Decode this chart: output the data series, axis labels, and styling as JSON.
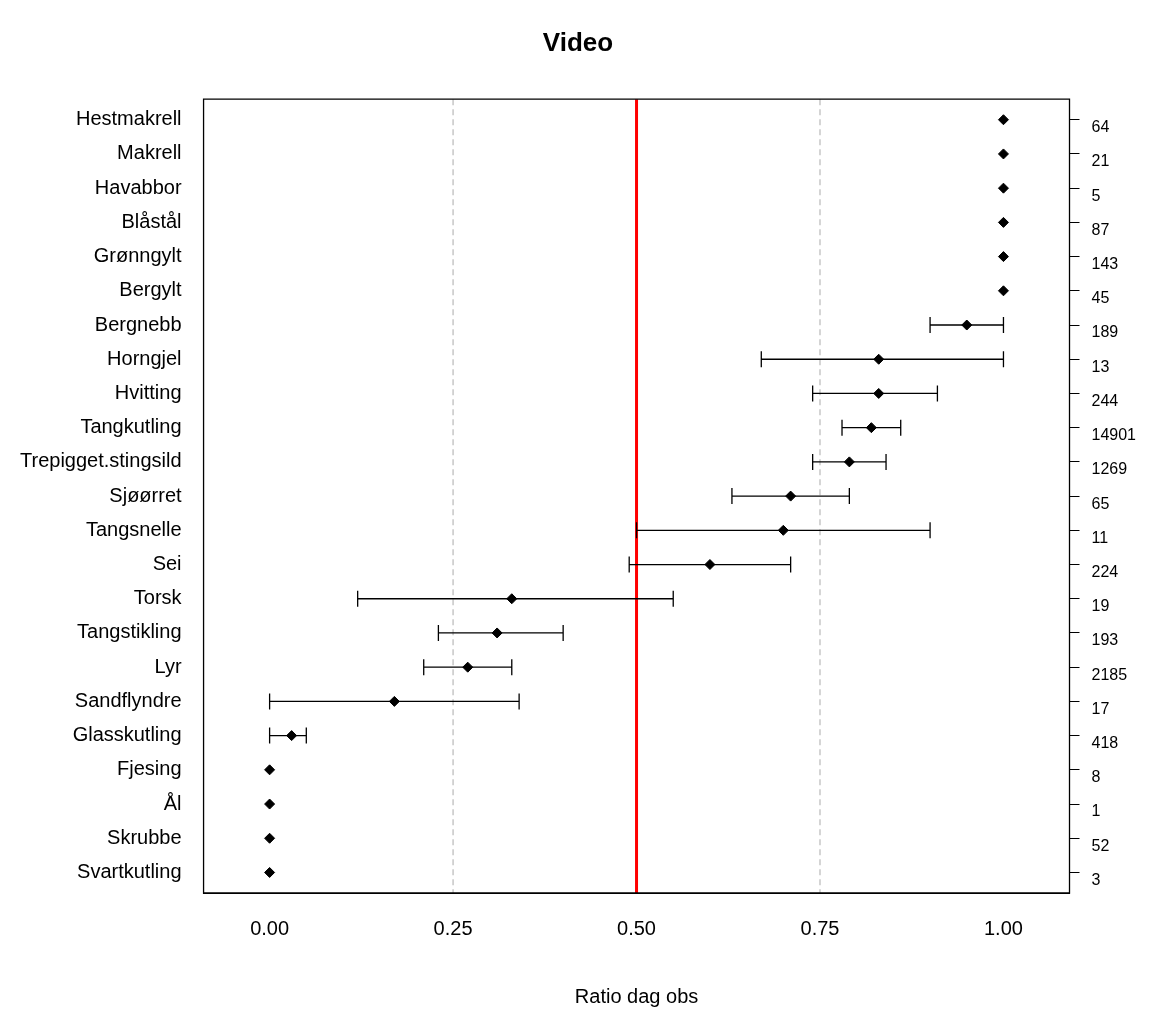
{
  "chart_data": {
    "type": "scatter",
    "orientation": "horizontal",
    "title": "Video",
    "xlabel": "Ratio dag obs",
    "categories": [
      "Hestmakrell",
      "Makrell",
      "Havabbor",
      "Blåstål",
      "Grønngylt",
      "Bergylt",
      "Bergnebb",
      "Horngjel",
      "Hvitting",
      "Tangkutling",
      "Trepigget.stingsild",
      "Sjøørret",
      "Tangsnelle",
      "Sei",
      "Torsk",
      "Tangstikling",
      "Lyr",
      "Sandflyndre",
      "Glasskutling",
      "Fjesing",
      "Ål",
      "Skrubbe",
      "Svartkutling"
    ],
    "y2_categories": [
      "64",
      "21",
      "5",
      "87",
      "143",
      "45",
      "189",
      "13",
      "244",
      "14901",
      "1269",
      "65",
      "11",
      "224",
      "19",
      "193",
      "2185",
      "17",
      "418",
      "8",
      "1",
      "52",
      "3"
    ],
    "values": [
      1,
      1,
      1,
      1,
      1,
      1,
      0.95,
      0.83,
      0.83,
      0.82,
      0.79,
      0.71,
      0.7,
      0.6,
      0.33,
      0.31,
      0.27,
      0.17,
      0.03,
      0,
      0,
      0,
      0
    ],
    "errors": [
      null,
      null,
      null,
      null,
      null,
      null,
      [
        0.9,
        1
      ],
      [
        0.67,
        1
      ],
      [
        0.74,
        0.91
      ],
      [
        0.78,
        0.86
      ],
      [
        0.74,
        0.84
      ],
      [
        0.63,
        0.79
      ],
      [
        0.5,
        0.9
      ],
      [
        0.49,
        0.71
      ],
      [
        0.12,
        0.55
      ],
      [
        0.23,
        0.4
      ],
      [
        0.21,
        0.33
      ],
      [
        0,
        0.34
      ],
      [
        0,
        0.05
      ],
      null,
      null,
      null,
      null
    ],
    "color": "#000000",
    "marker": "diamond",
    "grid": false,
    "legend": false,
    "xlim": [
      -0.09,
      1.09
    ],
    "xticks": [
      {
        "value": 0,
        "label": "0.00"
      },
      {
        "value": 0.25,
        "label": "0.25"
      },
      {
        "value": 0.5,
        "label": "0.50"
      },
      {
        "value": 0.75,
        "label": "0.75"
      },
      {
        "value": 1,
        "label": "1.00"
      }
    ],
    "ref_lines": [
      {
        "axis": "x",
        "value": 0.25,
        "color": "#bebebe",
        "line_style": "dashed"
      },
      {
        "axis": "x",
        "value": 0.5,
        "color": "#ff0000",
        "line_style": "solid"
      },
      {
        "axis": "x",
        "value": 0.75,
        "color": "#bebebe",
        "line_style": "dashed"
      }
    ]
  }
}
